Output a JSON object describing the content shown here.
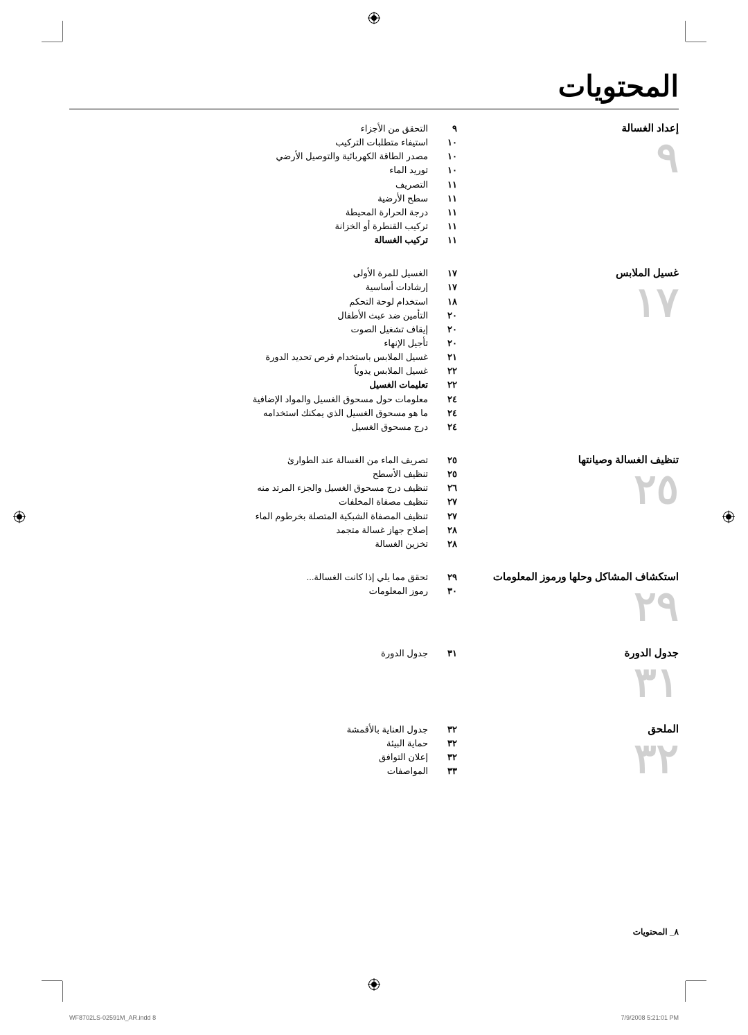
{
  "page_title": "المحتويات",
  "sections": [
    {
      "title": "إعداد الغسالة",
      "number": "٩",
      "entries": [
        {
          "page": "٩",
          "title": "التحقق من الأجزاء",
          "bold": false
        },
        {
          "page": "١٠",
          "title": "استيفاء متطلبات التركيب",
          "bold": false
        },
        {
          "page": "١٠",
          "title": "مصدر الطاقة الكهربائية والتوصيل الأرضي",
          "bold": false
        },
        {
          "page": "١٠",
          "title": "توريد الماء",
          "bold": false
        },
        {
          "page": "١١",
          "title": "التصريف",
          "bold": false
        },
        {
          "page": "١١",
          "title": "سطح الأرضية",
          "bold": false
        },
        {
          "page": "١١",
          "title": "درجة الحرارة المحيطة",
          "bold": false
        },
        {
          "page": "١١",
          "title": "تركيب القنطرة أو الخزانة",
          "bold": false
        },
        {
          "page": "١١",
          "title": "تركيب الغسالة",
          "bold": true
        }
      ]
    },
    {
      "title": "غسيل الملابس",
      "number": "١٧",
      "entries": [
        {
          "page": "١٧",
          "title": "الغسيل للمرة الأولى",
          "bold": false
        },
        {
          "page": "١٧",
          "title": "إرشادات أساسية",
          "bold": false
        },
        {
          "page": "١٨",
          "title": "استخدام لوحة التحكم",
          "bold": false
        },
        {
          "page": "٢٠",
          "title": "التأمين ضد عبث الأطفال",
          "bold": false
        },
        {
          "page": "٢٠",
          "title": "إيقاف تشغيل الصوت",
          "bold": false
        },
        {
          "page": "٢٠",
          "title": "تأجيل الإنهاء",
          "bold": false
        },
        {
          "page": "٢١",
          "title": "غسيل الملابس باستخدام قرص تحديد الدورة",
          "bold": false
        },
        {
          "page": "٢٢",
          "title": "غسيل الملابس يدوياً",
          "bold": false
        },
        {
          "page": "٢٢",
          "title": "تعليمات الغسيل",
          "bold": true
        },
        {
          "page": "٢٤",
          "title": "معلومات حول مسحوق الغسيل والمواد الإضافية",
          "bold": false
        },
        {
          "page": "٢٤",
          "title": "ما هو مسحوق الغسيل الذي يمكنك استخدامه",
          "bold": false
        },
        {
          "page": "٢٤",
          "title": "درج مسحوق الغسيل",
          "bold": false
        }
      ]
    },
    {
      "title": "تنظيف الغسالة وصيانتها",
      "number": "٢٥",
      "entries": [
        {
          "page": "٢٥",
          "title": "تصريف الماء من الغسالة عند الطوارئ",
          "bold": false
        },
        {
          "page": "٢٥",
          "title": "تنظيف الأسطح",
          "bold": false
        },
        {
          "page": "٢٦",
          "title": "تنظيف درج مسحوق الغسيل والجزء المرتد منه",
          "bold": false
        },
        {
          "page": "٢٧",
          "title": "تنظيف مصفاة المخلفات",
          "bold": false
        },
        {
          "page": "٢٧",
          "title": "تنظيف المصفاة الشبكية المتصلة بخرطوم الماء",
          "bold": false
        },
        {
          "page": "٢٨",
          "title": "إصلاح جهاز غسالة متجمد",
          "bold": false
        },
        {
          "page": "٢٨",
          "title": "تخزين الغسالة",
          "bold": false
        }
      ]
    },
    {
      "title": "استكشاف المشاكل وحلها ورموز المعلومات",
      "number": "٢٩",
      "entries": [
        {
          "page": "٢٩",
          "title": "تحقق مما يلي إذا كانت الغسالة...",
          "bold": false
        },
        {
          "page": "٣٠",
          "title": "رموز المعلومات",
          "bold": false
        }
      ]
    },
    {
      "title": "جدول الدورة",
      "number": "٣١",
      "entries": [
        {
          "page": "٣١",
          "title": "جدول الدورة",
          "bold": false
        }
      ]
    },
    {
      "title": "الملحق",
      "number": "٣٢",
      "entries": [
        {
          "page": "٣٢",
          "title": "جدول العناية بالأقمشة",
          "bold": false
        },
        {
          "page": "٣٢",
          "title": "حماية البيئة",
          "bold": false
        },
        {
          "page": "٣٢",
          "title": "إعلان التوافق",
          "bold": false
        },
        {
          "page": "٣٣",
          "title": "المواصفات",
          "bold": false
        }
      ]
    }
  ],
  "footer": "٨_ المحتويات",
  "print_file": "WF8702LS-02591M_AR.indd   8",
  "print_date": "7/9/2008   5:21:01 PM"
}
